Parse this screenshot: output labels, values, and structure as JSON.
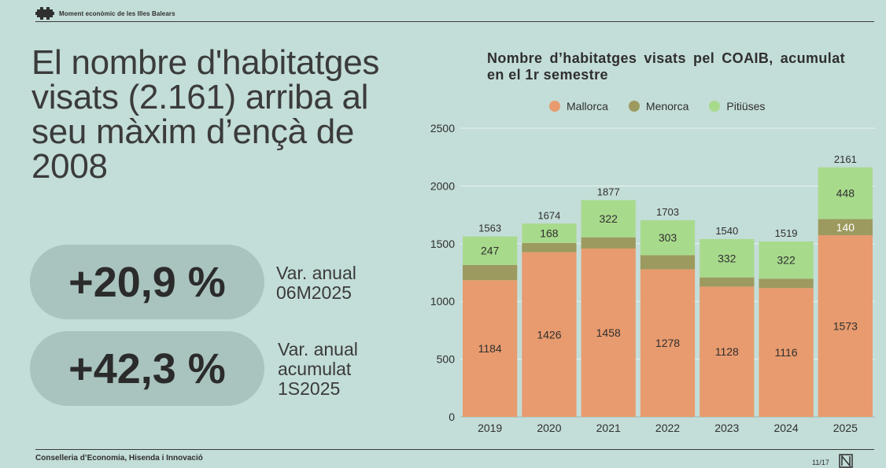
{
  "header": {
    "title": "Moment econòmic de les Illes Balears"
  },
  "main_title": "El nombre d'habitatges visats (2.161) arriba al seu màxim d’ençà de 2008",
  "stats": [
    {
      "value": "+20,9 %",
      "caption": "Var. anual\n06M2025"
    },
    {
      "value": "+42,3 %",
      "caption": "Var. anual\nacumulat\n1S2025"
    }
  ],
  "footer": {
    "text": "Conselleria d’Economia, Hisenda i Innovació",
    "page": "11/17"
  },
  "colors": {
    "mallorca": "#e89b6e",
    "menorca": "#9d9a5f",
    "pitiuses": "#a8da8c",
    "background": "#c3ddd8"
  },
  "chart_data": {
    "type": "bar",
    "stacked": true,
    "title": "Nombre d’habitatges visats pel COAIB, acumulat en el 1r semestre",
    "categories": [
      "2019",
      "2020",
      "2021",
      "2022",
      "2023",
      "2024",
      "2025"
    ],
    "series": [
      {
        "name": "Mallorca",
        "values": [
          1184,
          1426,
          1458,
          1278,
          1128,
          1116,
          1573
        ]
      },
      {
        "name": "Menorca",
        "values": [
          132,
          80,
          97,
          122,
          80,
          81,
          140
        ]
      },
      {
        "name": "Pitiüses",
        "values": [
          247,
          168,
          322,
          303,
          332,
          322,
          448
        ]
      }
    ],
    "totals": [
      1563,
      1674,
      1877,
      1703,
      1540,
      1519,
      2161
    ],
    "yticks": [
      0,
      500,
      1000,
      1500,
      2000,
      2500
    ],
    "ylim": [
      0,
      2500
    ],
    "grid": true,
    "legend_position": "top"
  }
}
